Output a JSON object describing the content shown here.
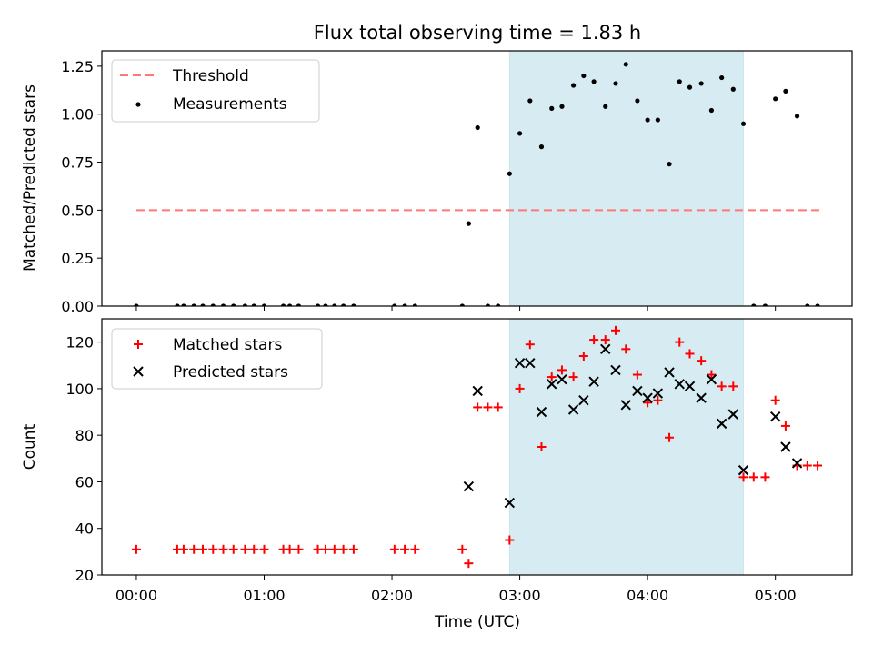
{
  "chart_data": {
    "type": "scatter",
    "title": "Flux total observing time = 1.83 h",
    "xlabel": "Time (UTC)",
    "x_unit": "hours since 00:00 UTC",
    "xlim": [
      -0.27,
      5.6
    ],
    "x_ticks": [
      0,
      1,
      2,
      3,
      4,
      5
    ],
    "x_tick_labels": [
      "00:00",
      "01:00",
      "02:00",
      "03:00",
      "04:00",
      "05:00"
    ],
    "highlight_span": {
      "start": 2.92,
      "end": 4.75,
      "color": "#add8e6"
    },
    "panels": [
      {
        "id": "ratio",
        "ylabel": "Matched/Predicted stars",
        "ylim": [
          0,
          1.33
        ],
        "y_ticks": [
          0,
          0.25,
          0.5,
          0.75,
          1.0,
          1.25
        ],
        "y_tick_labels": [
          "0.00",
          "0.25",
          "0.50",
          "0.75",
          "1.00",
          "1.25"
        ],
        "legend_position": "upper-left",
        "threshold": {
          "name": "Threshold",
          "value": 0.5,
          "x_start": 0.0,
          "x_end": 5.35,
          "color": "#ff7777"
        },
        "series": [
          {
            "name": "Measurements",
            "marker": "dot",
            "color": "#000000",
            "x": [
              0.0,
              0.32,
              0.37,
              0.45,
              0.52,
              0.6,
              0.68,
              0.76,
              0.85,
              0.92,
              1.0,
              1.15,
              1.2,
              1.27,
              1.42,
              1.48,
              1.55,
              1.62,
              1.7,
              2.02,
              2.1,
              2.18,
              2.55,
              2.6,
              2.67,
              2.75,
              2.83,
              2.92,
              3.0,
              3.08,
              3.17,
              3.25,
              3.33,
              3.42,
              3.5,
              3.58,
              3.67,
              3.75,
              3.83,
              3.92,
              4.0,
              4.08,
              4.17,
              4.25,
              4.33,
              4.42,
              4.5,
              4.58,
              4.67,
              4.75,
              4.83,
              4.92,
              5.0,
              5.08,
              5.17,
              5.25,
              5.33
            ],
            "y": [
              0,
              0,
              0,
              0,
              0,
              0,
              0,
              0,
              0,
              0,
              0,
              0,
              0,
              0,
              0,
              0,
              0,
              0,
              0,
              0,
              0,
              0,
              0,
              0.43,
              0.93,
              0,
              0,
              0.69,
              0.9,
              1.07,
              0.83,
              1.03,
              1.04,
              1.15,
              1.2,
              1.17,
              1.04,
              1.16,
              1.26,
              1.07,
              0.97,
              0.97,
              0.74,
              1.17,
              1.14,
              1.16,
              1.02,
              1.19,
              1.13,
              0.95,
              0,
              0,
              1.08,
              1.12,
              0.99,
              0,
              0
            ]
          }
        ]
      },
      {
        "id": "count",
        "ylabel": "Count",
        "ylim": [
          20,
          130
        ],
        "y_ticks": [
          20,
          40,
          60,
          80,
          100,
          120
        ],
        "y_tick_labels": [
          "20",
          "40",
          "60",
          "80",
          "100",
          "120"
        ],
        "legend_position": "upper-left",
        "series": [
          {
            "name": "Matched stars",
            "marker": "plus",
            "color": "#ff0000",
            "x": [
              0.0,
              0.32,
              0.37,
              0.45,
              0.52,
              0.6,
              0.68,
              0.76,
              0.85,
              0.92,
              1.0,
              1.15,
              1.2,
              1.27,
              1.42,
              1.48,
              1.55,
              1.62,
              1.7,
              2.02,
              2.1,
              2.18,
              2.55,
              2.6,
              2.67,
              2.75,
              2.83,
              2.92,
              3.0,
              3.08,
              3.17,
              3.25,
              3.33,
              3.42,
              3.5,
              3.58,
              3.67,
              3.75,
              3.83,
              3.92,
              4.0,
              4.08,
              4.17,
              4.25,
              4.33,
              4.42,
              4.5,
              4.58,
              4.67,
              4.75,
              4.83,
              4.92,
              5.0,
              5.08,
              5.17,
              5.25,
              5.33
            ],
            "y": [
              31,
              31,
              31,
              31,
              31,
              31,
              31,
              31,
              31,
              31,
              31,
              31,
              31,
              31,
              31,
              31,
              31,
              31,
              31,
              31,
              31,
              31,
              31,
              25,
              92,
              92,
              92,
              35,
              100,
              119,
              75,
              105,
              108,
              105,
              114,
              121,
              121,
              125,
              117,
              106,
              94,
              95,
              79,
              120,
              115,
              112,
              106,
              101,
              101,
              62,
              62,
              62,
              95,
              84,
              67,
              67,
              67
            ]
          },
          {
            "name": "Predicted stars",
            "marker": "x",
            "color": "#000000",
            "x": [
              2.6,
              2.67,
              2.92,
              3.0,
              3.08,
              3.17,
              3.25,
              3.33,
              3.42,
              3.5,
              3.58,
              3.67,
              3.75,
              3.83,
              3.92,
              4.0,
              4.08,
              4.17,
              4.25,
              4.33,
              4.42,
              4.5,
              4.58,
              4.67,
              4.75,
              5.0,
              5.08,
              5.17
            ],
            "y": [
              58,
              99,
              51,
              111,
              111,
              90,
              102,
              104,
              91,
              95,
              103,
              117,
              108,
              93,
              99,
              96,
              98,
              107,
              102,
              101,
              96,
              104,
              85,
              89,
              65,
              88,
              75,
              68
            ]
          }
        ]
      }
    ]
  }
}
